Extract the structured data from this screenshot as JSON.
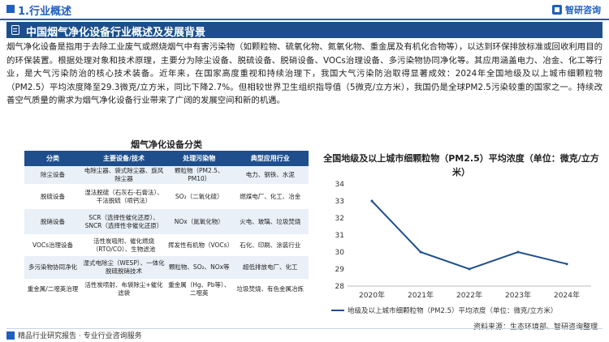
{
  "header": {
    "section": "1.行业概述",
    "brand": "智研咨询"
  },
  "banner": {
    "title": "中国烟气净化设备行业概述及发展背景"
  },
  "intro": "烟气净化设备是指用于去除工业废气或燃烧烟气中有害污染物（如颗粒物、硫氧化物、氮氧化物、重金属及有机化合物等），以达到环保排放标准或回收利用目的的环保装置。根据处理对象和技术原理，主要分为除尘设备、脱硫设备、脱硝设备、VOCs治理设备、多污染物协同净化等。其应用涵盖电力、冶金、化工等行业，是大气污染防治的核心技术装备。近年来，在国家高度重视和持续治理下，我国大气污染防治取得显著成效：2024年全国地级及以上城市细颗粒物（PM2.5）平均浓度降至29.3微克/立方米，同比下降2.7%。但相较世界卫生组织指导值（5微克/立方米），我国仍是全球PM2.5污染较重的国家之一。持续改善空气质量的需求为烟气净化设备行业带来了广阔的发展空间和新的机遇。",
  "table": {
    "title": "烟气净化设备分类",
    "headers": [
      "分类",
      "主要设备/技术",
      "处理污染物",
      "典型应用行业"
    ],
    "rows": [
      [
        "除尘设备",
        "电除尘器、袋式除尘器、旋风除尘器",
        "颗粒物（PM2.5、PM10）",
        "电力、钢铁、水泥"
      ],
      [
        "脱硫设备",
        "湿法脱硫（石灰石-石膏法）、干法脱硫（喷钙法）",
        "SO₂（二氧化硫）",
        "燃煤电厂、化工、冶金"
      ],
      [
        "脱硝设备",
        "SCR（选择性催化还原）、SNCR（选择性非催化还原）",
        "NOx（氮氧化物）",
        "火电、玻璃、垃圾焚烧"
      ],
      [
        "VOCs治理设备",
        "活性炭吸附、催化燃烧（RTO/CO）、生物滤池",
        "挥发性有机物（VOCs）",
        "石化、印刷、涂装行业"
      ],
      [
        "多污染物协同净化",
        "湿式电除尘（WESP）、一体化脱硫脱硝技术",
        "颗粒物、SO₂、NOx等",
        "超低排放电厂、化工"
      ],
      [
        "重金属/二噁英治理",
        "活性炭喷射、布袋除尘+催化滤袋",
        "重金属（Hg、Pb等）、二噁英",
        "垃圾焚烧、有色金属冶炼"
      ]
    ]
  },
  "chart_data": {
    "type": "line",
    "title": "全国地级及以上城市细颗粒物（PM2.5）平均浓度（单位：微克/立方米）",
    "categories": [
      "2020年",
      "2021年",
      "2022年",
      "2023年",
      "2024年"
    ],
    "series": [
      {
        "name": "地级及以上城市细颗粒物（PM2.5）平均浓度（单位：微克/立方米）",
        "values": [
          33,
          30,
          29,
          30,
          29.3
        ]
      }
    ],
    "ylim": [
      28,
      34
    ],
    "yticks": [
      28,
      29,
      30,
      31,
      32,
      33,
      34
    ],
    "grid": false,
    "legend": "bottom",
    "color": "#1e4f8c"
  },
  "source": "资料来源：生态环境部、智研咨询整理",
  "footer": "精品行业研究报告 · 专业行业咨询服务"
}
